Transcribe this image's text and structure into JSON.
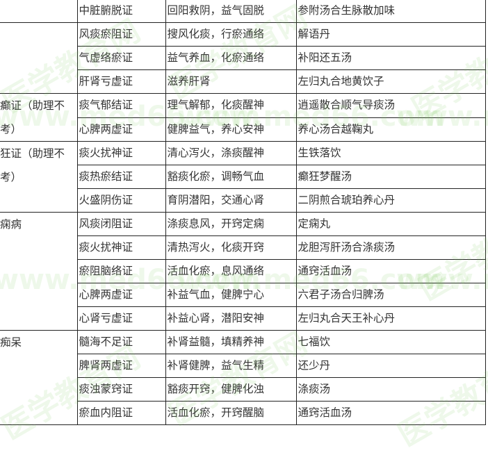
{
  "watermark": {
    "cn": "医学教育网",
    "url": "www.med66.com"
  },
  "groups": [
    {
      "label": "",
      "rows": [
        {
          "syndrome": "中脏腑脱证",
          "method": "回阳救阴，益气固脱",
          "formula": "参附汤合生脉散加味"
        }
      ]
    },
    {
      "label": "",
      "rows": [
        {
          "syndrome": "风痰瘀阻证",
          "method": "搜风化痰，行瘀通络",
          "formula": "解语丹"
        },
        {
          "syndrome": "气虚络瘀证",
          "method": "益气养血，化瘀通络",
          "formula": "补阳还五汤"
        },
        {
          "syndrome": "肝肾亏虚证",
          "method": "滋养肝肾",
          "formula": "左归丸合地黄饮子"
        }
      ]
    },
    {
      "label": "癫证（助理不考）",
      "rows": [
        {
          "syndrome": "痰气郁结证",
          "method": "理气解郁，化痰醒神",
          "formula": "逍遥散合顺气导痰汤"
        },
        {
          "syndrome": "心脾两虚证",
          "method": "健脾益气，养心安神",
          "formula": "养心汤合越鞠丸"
        }
      ]
    },
    {
      "label": "狂证（助理不考）",
      "rows": [
        {
          "syndrome": "痰火扰神证",
          "method": "清心泻火，涤痰醒神",
          "formula": "生铁落饮"
        },
        {
          "syndrome": "痰热瘀结证",
          "method": "豁痰化瘀，调畅气血",
          "formula": "癫狂梦醒汤"
        },
        {
          "syndrome": "火盛阴伤证",
          "method": "育阴潜阳，交通心肾",
          "formula": "二阴煎合琥珀养心丹"
        }
      ]
    },
    {
      "label": "痫病",
      "rows": [
        {
          "syndrome": "风痰闭阻证",
          "method": "涤痰息风，开窍定痫",
          "formula": "定痫丸"
        },
        {
          "syndrome": "痰火扰神证",
          "method": "清热泻火，化痰开窍",
          "formula": "龙胆泻肝汤合涤痰汤"
        },
        {
          "syndrome": "瘀阻脑络证",
          "method": "活血化瘀，息风通络",
          "formula": "通窍活血汤"
        },
        {
          "syndrome": "心脾两虚证",
          "method": "补益气血，健脾宁心",
          "formula": "六君子汤合归脾汤"
        },
        {
          "syndrome": "心肾亏虚证",
          "method": "补益心肾，潜阳安神",
          "formula": "左归丸合天王补心丹"
        }
      ]
    },
    {
      "label": "痴呆",
      "rows": [
        {
          "syndrome": "髓海不足证",
          "method": "补肾益髓，填精养神",
          "formula": "七福饮"
        },
        {
          "syndrome": "脾肾两虚证",
          "method": "补肾健脾，益气生精",
          "formula": "还少丹"
        },
        {
          "syndrome": "痰浊蒙窍证",
          "method": "豁痰开窍，健脾化浊",
          "formula": "涤痰汤"
        },
        {
          "syndrome": "瘀血内阻证",
          "method": "活血化瘀，开窍醒脑",
          "formula": "通窍活血汤"
        }
      ]
    }
  ]
}
